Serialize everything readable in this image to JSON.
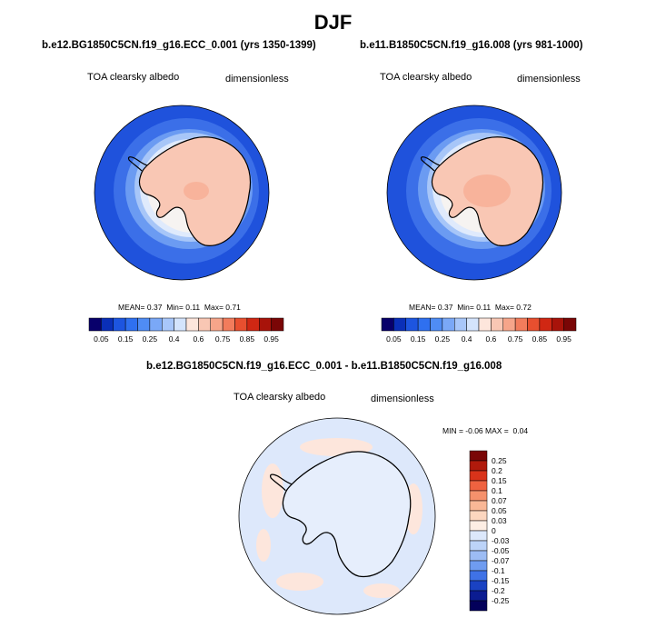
{
  "title": "DJF",
  "panels": [
    {
      "title": "b.e12.BG1850C5CN.f19_g16.ECC_0.001 (yrs 1350-1399)",
      "variable": "TOA clearsky albedo",
      "units": "dimensionless",
      "stats": {
        "mean": "0.37",
        "min": "0.11",
        "max": "0.71"
      },
      "stats_labels": {
        "mean": "MEAN=",
        "min": "Min=",
        "max": "Max="
      }
    },
    {
      "title": "b.e11.B1850C5CN.f19_g16.008 (yrs 981-1000)",
      "variable": "TOA clearsky albedo",
      "units": "dimensionless",
      "stats": {
        "mean": "0.37",
        "min": "0.11",
        "max": "0.72"
      },
      "stats_labels": {
        "mean": "MEAN=",
        "min": "Min=",
        "max": "Max="
      }
    }
  ],
  "abs_colorbar": {
    "labels": [
      "0.05",
      "0.15",
      "0.25",
      "0.4",
      "0.6",
      "0.75",
      "0.85",
      "0.95"
    ],
    "colors": [
      "#08006b",
      "#0a2fb8",
      "#1d55e0",
      "#2f70f0",
      "#4f8cf4",
      "#7aa8f7",
      "#a8c7fa",
      "#d4e4fc",
      "#fde6dc",
      "#f9c7b4",
      "#f6a58a",
      "#f27c5c",
      "#e84f2f",
      "#d02713",
      "#a8130a",
      "#7a0606"
    ]
  },
  "diff": {
    "title": "b.e12.BG1850C5CN.f19_g16.ECC_0.001 - b.e11.B1850C5CN.f19_g16.008",
    "variable": "TOA clearsky albedo",
    "units": "dimensionless",
    "min_label": "MIN =",
    "min": "-0.06",
    "max_label": "MAX =",
    "max": "0.04",
    "colorbar_labels": [
      "0.25",
      "0.2",
      "0.15",
      "0.1",
      "0.07",
      "0.05",
      "0.03",
      "0",
      "-0.03",
      "-0.05",
      "-0.07",
      "-0.1",
      "-0.15",
      "-0.2",
      "-0.25"
    ],
    "colorbar_colors": [
      "#7a0606",
      "#b01a0c",
      "#d9331a",
      "#ef6240",
      "#f5916c",
      "#f9b796",
      "#fcd6bf",
      "#fdeee4",
      "#dce8fb",
      "#bcd3f8",
      "#9cbcf4",
      "#6f9cf0",
      "#3f72e6",
      "#1a42c2",
      "#0b1c91",
      "#03005a"
    ]
  }
}
